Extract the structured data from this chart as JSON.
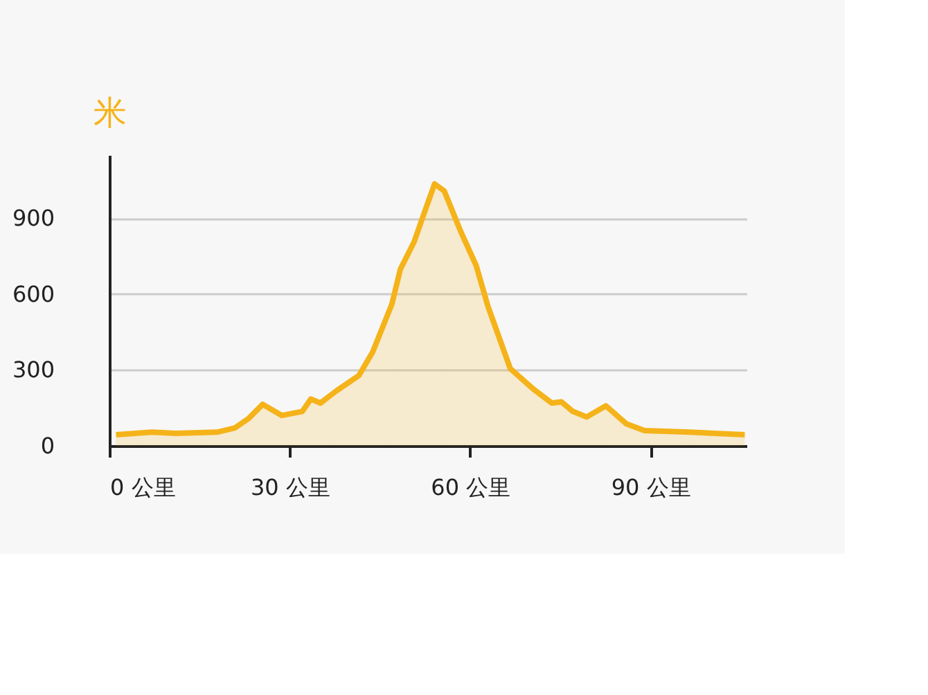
{
  "chart_data": {
    "type": "area",
    "ylabel": "米",
    "x": [
      1.1,
      7.1,
      11,
      17.9,
      20.9,
      23.2,
      25.5,
      28.7,
      32.1,
      33.5,
      35.1,
      37.8,
      41.5,
      43.8,
      47,
      48.4,
      50.7,
      52.3,
      54.1,
      55.7,
      58.5,
      61,
      63,
      66.7,
      70.6,
      73.6,
      75.2,
      77.1,
      79.4,
      82.6,
      86,
      89,
      96.6,
      105.7
    ],
    "series": [
      {
        "color": "#f5b31a",
        "values": [
          44,
          54,
          49,
          54,
          71,
          109,
          164,
          120,
          136,
          185,
          169,
          218,
          278,
          371,
          561,
          698,
          807,
          916,
          1036,
          1008,
          845,
          714,
          550,
          305,
          223,
          169,
          174,
          136,
          114,
          158,
          87,
          60,
          54,
          44
        ]
      }
    ],
    "xlim": [
      0,
      106
    ],
    "ylim": [
      0,
      1150
    ],
    "xticks": [
      {
        "value": 0,
        "label": "0 公里"
      },
      {
        "value": 30,
        "label": "30 公里"
      },
      {
        "value": 60,
        "label": "60 公里"
      },
      {
        "value": 90,
        "label": "90 公里"
      }
    ],
    "yticks": [
      0,
      300,
      600,
      900
    ],
    "grid": "y",
    "marker": "none",
    "line_style": "solid"
  }
}
